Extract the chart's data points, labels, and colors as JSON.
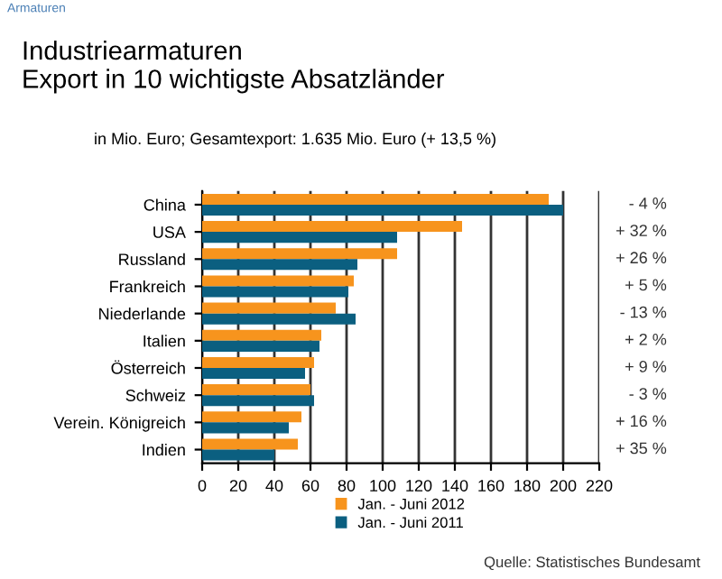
{
  "chart_data": {
    "type": "bar",
    "orientation": "horizontal",
    "title": "Industriearmaturen\nExport in 10 wichtigste Absatzländer",
    "subtitle": "in Mio. Euro; Gesamtexport: 1.635 Mio. Euro (+ 13,5 %)",
    "categories": [
      "China",
      "USA",
      "Russland",
      "Frankreich",
      "Niederlande",
      "Italien",
      "Österreich",
      "Schweiz",
      "Verein. Königreich",
      "Indien"
    ],
    "series": [
      {
        "name": "Jan. - Juni 2012",
        "color": "#f7941d",
        "values": [
          192,
          144,
          108,
          84,
          74,
          66,
          62,
          60,
          55,
          53
        ]
      },
      {
        "name": "Jan. - Juni 2011",
        "color": "#0b5f80",
        "values": [
          200,
          108,
          86,
          81,
          85,
          65,
          57,
          62,
          48,
          40
        ]
      }
    ],
    "xlim": [
      0,
      220
    ],
    "xticks": [
      0,
      20,
      40,
      60,
      80,
      100,
      120,
      140,
      160,
      180,
      200,
      220
    ],
    "grid": "x",
    "legend": "bottom",
    "annotations": [
      "Armaturen",
      "Quelle: Statistisches Bundesamt",
      "- 4 %",
      "+ 32 %",
      "+ 26 %",
      "+ 5 %",
      "- 13 %",
      "+ 2 %",
      "+ 9 %",
      "- 3 %",
      "+ 16 %",
      "+ 35 %"
    ]
  }
}
